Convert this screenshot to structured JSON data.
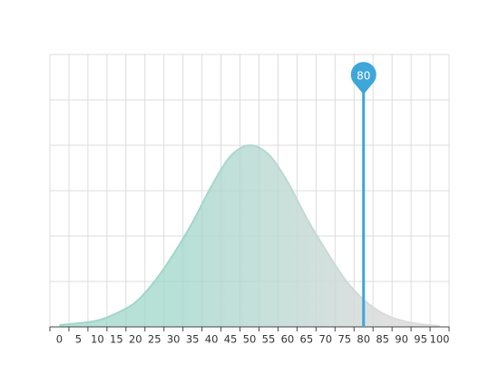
{
  "chart_data": {
    "type": "area",
    "categories": [
      "0",
      "5",
      "10",
      "15",
      "20",
      "25",
      "30",
      "35",
      "40",
      "45",
      "50",
      "55",
      "60",
      "65",
      "70",
      "75",
      "80",
      "85",
      "90",
      "95",
      "100"
    ],
    "values": [
      0.0004,
      0.0008,
      0.0014,
      0.003,
      0.0054,
      0.01,
      0.016,
      0.023,
      0.031,
      0.0376,
      0.04,
      0.038,
      0.032,
      0.024,
      0.017,
      0.0106,
      0.006,
      0.003,
      0.0014,
      0.0006,
      0.0002
    ],
    "ylim": [
      0,
      0.06
    ],
    "yticks": [
      0,
      0.01,
      0.02,
      0.03,
      0.04,
      0.05,
      0.06
    ],
    "grid": true,
    "color": "#9fd6ca",
    "fade_color": "#dcdcdc",
    "marker": 80,
    "marker_color": "#3ea6d9"
  }
}
